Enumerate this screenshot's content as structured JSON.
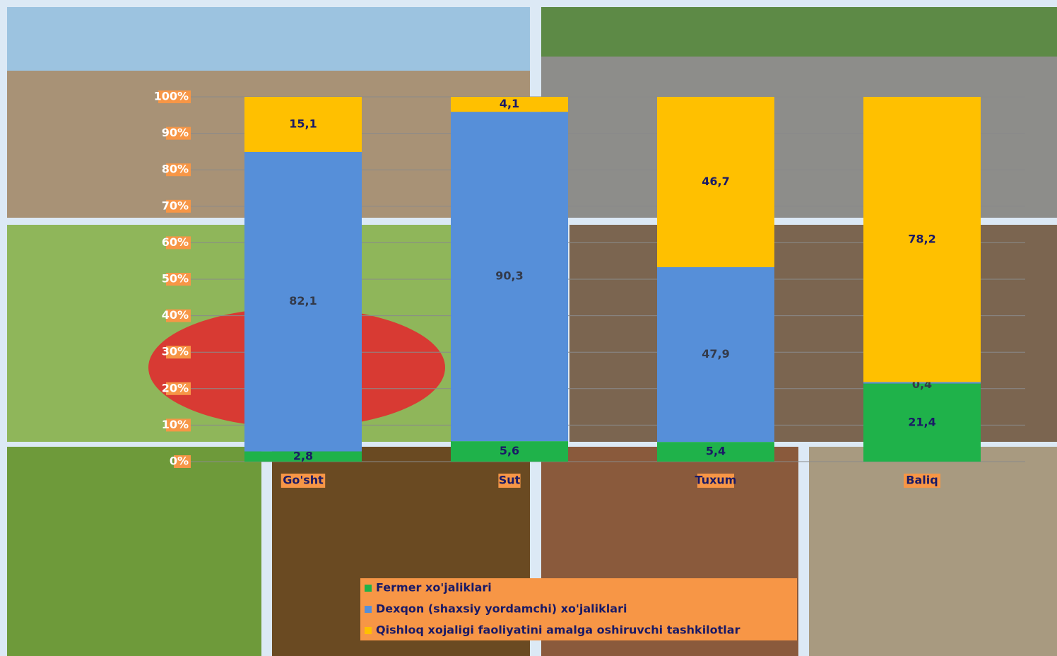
{
  "chart_data": {
    "type": "stacked_bar",
    "categories": [
      "Go'sht",
      "Sut",
      "Tuxum",
      "Baliq"
    ],
    "series": [
      {
        "name": "Fermer xo'jaliklari",
        "color": "#1fb24a",
        "values": [
          2.8,
          5.6,
          5.4,
          21.4
        ],
        "value_labels": [
          "2,8",
          "5,6",
          "5,4",
          "21,4"
        ]
      },
      {
        "name": "Dexqon (shaxsiy yordamchi)  xo'jaliklari",
        "color": "#568fd9",
        "values": [
          82.1,
          90.3,
          47.9,
          0.4
        ],
        "value_labels": [
          "82,1",
          "90,3",
          "47,9",
          "0,4"
        ]
      },
      {
        "name": "Qishloq xojaligi faoliyatini amalga oshiruvchi tashkilotlar",
        "color": "#ffc000",
        "values": [
          15.1,
          4.1,
          46.7,
          78.2
        ],
        "value_labels": [
          "15,1",
          "4,1",
          "46,7",
          "78,2"
        ]
      }
    ],
    "ylim": [
      0,
      100
    ],
    "yticks": [
      {
        "value": 0,
        "label": "0%"
      },
      {
        "value": 10,
        "label": "10%"
      },
      {
        "value": 20,
        "label": "20%"
      },
      {
        "value": 30,
        "label": "30%"
      },
      {
        "value": 40,
        "label": "40%"
      },
      {
        "value": 50,
        "label": "50%"
      },
      {
        "value": 60,
        "label": "60%"
      },
      {
        "value": 70,
        "label": "70%"
      },
      {
        "value": 80,
        "label": "80%"
      },
      {
        "value": 90,
        "label": "90%"
      },
      {
        "value": 100,
        "label": "100%"
      }
    ],
    "grid": true
  }
}
